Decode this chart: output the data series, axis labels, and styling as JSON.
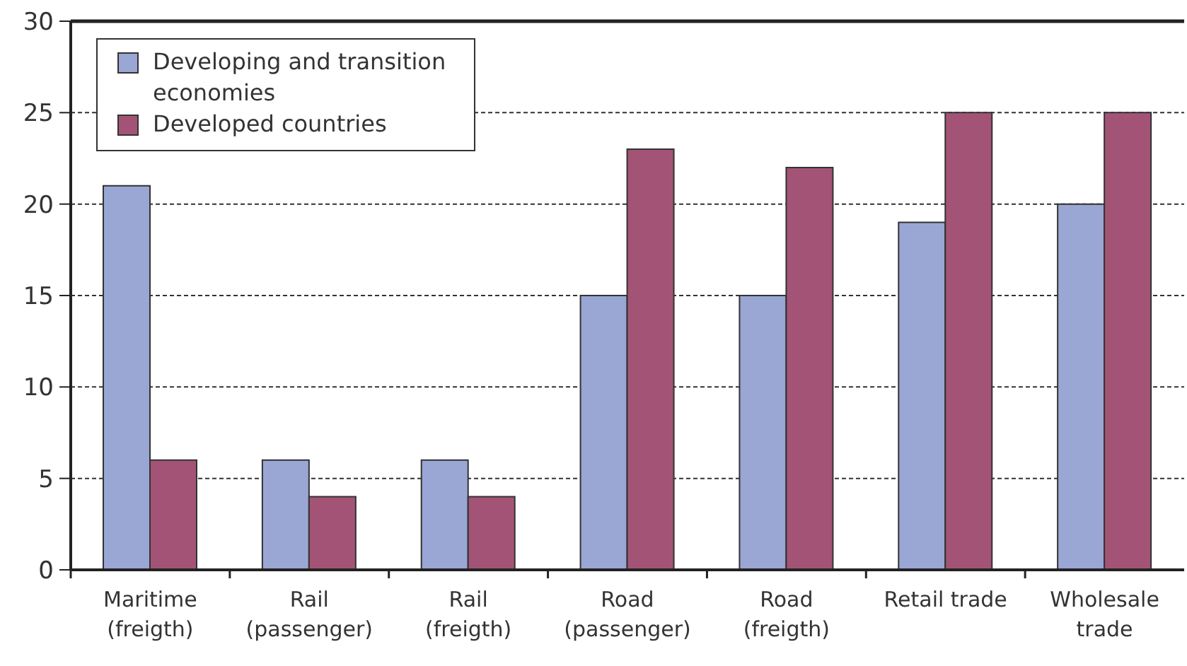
{
  "chart_data": {
    "type": "bar",
    "categories": [
      "Maritime\n(freigth)",
      "Rail\n(passenger)",
      "Rail\n(freigth)",
      "Road\n(passenger)",
      "Road\n(freigth)",
      "Retail trade",
      "Wholesale\ntrade"
    ],
    "series": [
      {
        "name": "Developing and transition economies",
        "color": "#9aa6d3",
        "values": [
          21,
          6,
          6,
          15,
          15,
          19,
          20
        ]
      },
      {
        "name": "Developed countries",
        "color": "#a35476",
        "values": [
          6,
          4,
          4,
          23,
          22,
          25,
          25
        ]
      }
    ],
    "ylim": [
      0,
      30
    ],
    "yticks": [
      0,
      5,
      10,
      15,
      20,
      25,
      30
    ],
    "grid": "y",
    "legend": "top left"
  }
}
